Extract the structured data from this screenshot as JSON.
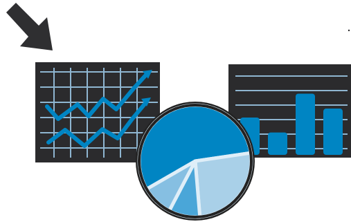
{
  "colors": {
    "background": "#ffffff",
    "dark_panel": "#2b2b2d",
    "grid_line": "#8fb6d1",
    "primary_blue": "#0085c3",
    "light_blue": "#a9d0e8",
    "medium_blue": "#4aa6d8",
    "soft_blue": "#86bfe2",
    "outline": "#222222",
    "arrow": "#2f2f31",
    "separator": "#dfeef8"
  },
  "icons": {
    "arrow": "diagonal-arrow-icon",
    "line_chart": "line-chart-icon",
    "bar_chart": "bar-chart-icon",
    "pie_chart": "pie-chart-icon"
  },
  "bar_chart_levels": [
    0.5,
    0.3,
    0.82,
    0.62
  ],
  "pie_chart_shares": [
    0.56,
    0.26,
    0.09,
    0.09
  ]
}
